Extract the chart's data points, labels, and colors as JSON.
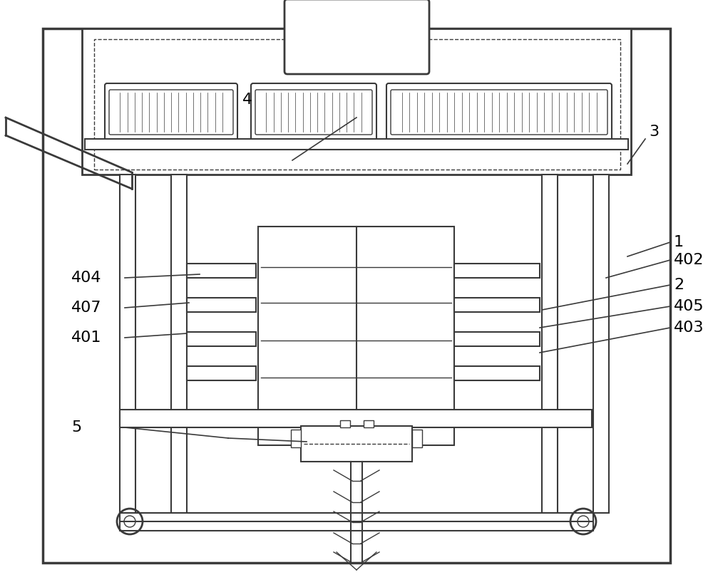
{
  "bg_color": "#ffffff",
  "lc": "#3a3a3a",
  "fig_width": 10.0,
  "fig_height": 8.24,
  "lw_heavy": 2.5,
  "lw_main": 2.0,
  "lw_med": 1.5,
  "lw_thin": 1.0,
  "lw_xtra": 0.6
}
